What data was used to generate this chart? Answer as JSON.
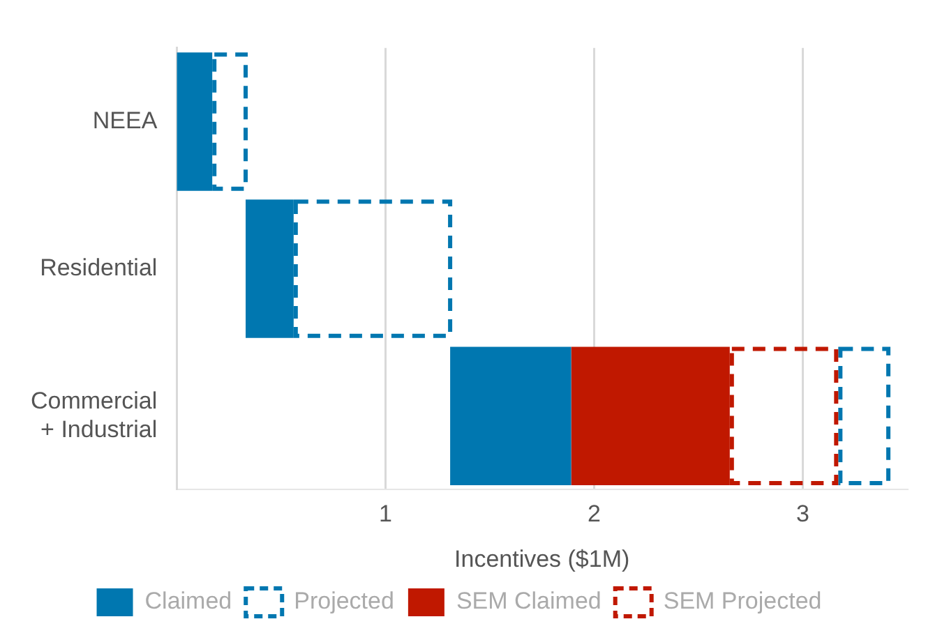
{
  "chart_data": {
    "type": "bar",
    "orientation": "horizontal",
    "xlabel": "Incentives ($1M)",
    "categories": [
      "NEEA",
      "Residential",
      "Commercial\n+ Industrial"
    ],
    "series": [
      {
        "name": "Claimed",
        "color": "#0077b0",
        "line_style": "solid",
        "values": [
          0.17,
          0.23,
          0.58
        ],
        "base": [
          0,
          0.33,
          1.31
        ]
      },
      {
        "name": "Projected",
        "color": "#0077b0",
        "line_style": "dashed",
        "values": [
          0.17,
          0.76,
          0.25
        ],
        "base": [
          0.17,
          0.56,
          3.17
        ]
      },
      {
        "name": "SEM Claimed",
        "color": "#c01800",
        "line_style": "solid",
        "values": [
          null,
          null,
          0.76
        ],
        "base": [
          null,
          null,
          1.89
        ]
      },
      {
        "name": "SEM Projected",
        "color": "#c01800",
        "line_style": "dashed",
        "values": [
          null,
          null,
          0.52
        ],
        "base": [
          null,
          null,
          2.65
        ]
      }
    ],
    "xlim": [
      0,
      3.5
    ],
    "xticks": [
      1,
      2,
      3
    ],
    "grid": "x",
    "legend": "bottom"
  }
}
